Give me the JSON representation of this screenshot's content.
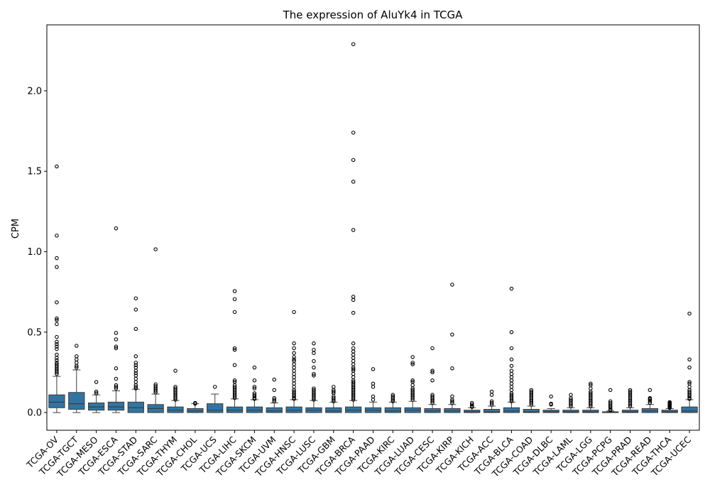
{
  "chart_data": {
    "type": "box",
    "title": "The expression of AluYk4 in TCGA",
    "xlabel": "",
    "ylabel": "CPM",
    "ylim": [
      -0.11,
      2.41
    ],
    "yticks": [
      0.0,
      0.5,
      1.0,
      1.5,
      2.0
    ],
    "ytick_labels": [
      "0.0",
      "0.5",
      "1.0",
      "1.5",
      "2.0"
    ],
    "grid": false,
    "box_color": "#3274a1",
    "categories": [
      "TCGA-OV",
      "TCGA-TGCT",
      "TCGA-MESO",
      "TCGA-ESCA",
      "TCGA-STAD",
      "TCGA-SARC",
      "TCGA-THYM",
      "TCGA-CHOL",
      "TCGA-UCS",
      "TCGA-LIHC",
      "TCGA-SKCM",
      "TCGA-UVM",
      "TCGA-HNSC",
      "TCGA-LUSC",
      "TCGA-GBM",
      "TCGA-BRCA",
      "TCGA-PAAD",
      "TCGA-KIRC",
      "TCGA-LUAD",
      "TCGA-CESC",
      "TCGA-KIRP",
      "TCGA-KICH",
      "TCGA-ACC",
      "TCGA-BLCA",
      "TCGA-COAD",
      "TCGA-DLBC",
      "TCGA-LAML",
      "TCGA-LGG",
      "TCGA-PCPG",
      "TCGA-PRAD",
      "TCGA-READ",
      "TCGA-THCA",
      "TCGA-UCEC"
    ],
    "boxes": [
      {
        "min": 0.0,
        "q1": 0.03,
        "median": 0.065,
        "q3": 0.11,
        "max": 0.225,
        "outliers": [
          1.53,
          1.1,
          0.96,
          0.905,
          0.685,
          0.585,
          0.575,
          0.55,
          0.47,
          0.44,
          0.425,
          0.41,
          0.395,
          0.36,
          0.34,
          0.325,
          0.31,
          0.3,
          0.29,
          0.28,
          0.27,
          0.26,
          0.25,
          0.24
        ]
      },
      {
        "min": 0.0,
        "q1": 0.02,
        "median": 0.055,
        "q3": 0.125,
        "max": 0.265,
        "outliers": [
          0.415,
          0.35,
          0.33,
          0.31,
          0.29,
          0.28
        ]
      },
      {
        "min": 0.0,
        "q1": 0.015,
        "median": 0.035,
        "q3": 0.06,
        "max": 0.11,
        "outliers": [
          0.19,
          0.13,
          0.12
        ]
      },
      {
        "min": 0.0,
        "q1": 0.015,
        "median": 0.035,
        "q3": 0.065,
        "max": 0.135,
        "outliers": [
          1.145,
          0.495,
          0.455,
          0.41,
          0.4,
          0.275,
          0.21,
          0.17,
          0.16,
          0.15
        ]
      },
      {
        "min": 0.0,
        "q1": 0.0,
        "median": 0.03,
        "q3": 0.065,
        "max": 0.145,
        "outliers": [
          0.71,
          0.64,
          0.52,
          0.35,
          0.31,
          0.295,
          0.28,
          0.26,
          0.245,
          0.23,
          0.21,
          0.19,
          0.17,
          0.16,
          0.15
        ]
      },
      {
        "min": 0.0,
        "q1": 0.0,
        "median": 0.025,
        "q3": 0.05,
        "max": 0.115,
        "outliers": [
          1.015,
          0.175,
          0.165,
          0.155,
          0.145,
          0.135,
          0.125
        ]
      },
      {
        "min": 0.0,
        "q1": 0.0,
        "median": 0.015,
        "q3": 0.035,
        "max": 0.075,
        "outliers": [
          0.26,
          0.16,
          0.15,
          0.14,
          0.13,
          0.12,
          0.11,
          0.1,
          0.09,
          0.08
        ]
      },
      {
        "min": 0.0,
        "q1": 0.0,
        "median": 0.01,
        "q3": 0.025,
        "max": 0.055,
        "outliers": [
          0.06,
          0.055
        ]
      },
      {
        "min": 0.0,
        "q1": 0.0,
        "median": 0.015,
        "q3": 0.055,
        "max": 0.115,
        "outliers": [
          0.16
        ]
      },
      {
        "min": 0.0,
        "q1": 0.0,
        "median": 0.015,
        "q3": 0.035,
        "max": 0.085,
        "outliers": [
          0.755,
          0.705,
          0.625,
          0.4,
          0.39,
          0.295,
          0.2,
          0.19,
          0.17,
          0.16,
          0.15,
          0.14,
          0.13,
          0.12,
          0.11,
          0.1,
          0.09
        ]
      },
      {
        "min": 0.0,
        "q1": 0.0,
        "median": 0.015,
        "q3": 0.035,
        "max": 0.08,
        "outliers": [
          0.28,
          0.2,
          0.16,
          0.15,
          0.12,
          0.11,
          0.1,
          0.09,
          0.085
        ]
      },
      {
        "min": 0.0,
        "q1": 0.0,
        "median": 0.01,
        "q3": 0.03,
        "max": 0.06,
        "outliers": [
          0.205,
          0.14,
          0.09,
          0.08,
          0.07
        ]
      },
      {
        "min": 0.0,
        "q1": 0.0,
        "median": 0.015,
        "q3": 0.035,
        "max": 0.08,
        "outliers": [
          0.625,
          0.43,
          0.4,
          0.37,
          0.345,
          0.33,
          0.32,
          0.3,
          0.28,
          0.26,
          0.24,
          0.22,
          0.2,
          0.18,
          0.16,
          0.14,
          0.13,
          0.12,
          0.11,
          0.1,
          0.09,
          0.085
        ]
      },
      {
        "min": 0.0,
        "q1": 0.0,
        "median": 0.015,
        "q3": 0.03,
        "max": 0.075,
        "outliers": [
          0.43,
          0.39,
          0.37,
          0.32,
          0.28,
          0.24,
          0.23,
          0.15,
          0.14,
          0.13,
          0.12,
          0.11,
          0.1,
          0.09,
          0.08
        ]
      },
      {
        "min": 0.0,
        "q1": 0.0,
        "median": 0.01,
        "q3": 0.03,
        "max": 0.065,
        "outliers": [
          0.16,
          0.14,
          0.13,
          0.12,
          0.1,
          0.09,
          0.08,
          0.07
        ]
      },
      {
        "min": 0.0,
        "q1": 0.0,
        "median": 0.015,
        "q3": 0.035,
        "max": 0.075,
        "outliers": [
          2.29,
          1.74,
          1.57,
          1.435,
          1.135,
          0.72,
          0.7,
          0.62,
          0.43,
          0.4,
          0.38,
          0.36,
          0.34,
          0.32,
          0.3,
          0.28,
          0.27,
          0.26,
          0.24,
          0.22,
          0.2,
          0.19,
          0.18,
          0.17,
          0.16,
          0.15,
          0.14,
          0.13,
          0.12,
          0.11,
          0.1,
          0.09,
          0.08
        ]
      },
      {
        "min": 0.0,
        "q1": 0.0,
        "median": 0.015,
        "q3": 0.03,
        "max": 0.065,
        "outliers": [
          0.27,
          0.18,
          0.16,
          0.1,
          0.08
        ]
      },
      {
        "min": 0.0,
        "q1": 0.0,
        "median": 0.01,
        "q3": 0.03,
        "max": 0.065,
        "outliers": [
          0.11,
          0.1,
          0.09,
          0.08,
          0.07
        ]
      },
      {
        "min": 0.0,
        "q1": 0.0,
        "median": 0.015,
        "q3": 0.03,
        "max": 0.07,
        "outliers": [
          0.345,
          0.31,
          0.3,
          0.2,
          0.19,
          0.17,
          0.15,
          0.14,
          0.13,
          0.12,
          0.11,
          0.1,
          0.09,
          0.08
        ]
      },
      {
        "min": 0.0,
        "q1": 0.0,
        "median": 0.01,
        "q3": 0.025,
        "max": 0.05,
        "outliers": [
          0.4,
          0.26,
          0.25,
          0.2,
          0.11,
          0.1,
          0.09,
          0.08,
          0.07,
          0.06
        ]
      },
      {
        "min": 0.0,
        "q1": 0.0,
        "median": 0.01,
        "q3": 0.025,
        "max": 0.05,
        "outliers": [
          0.795,
          0.485,
          0.275,
          0.1,
          0.08,
          0.07,
          0.06
        ]
      },
      {
        "min": 0.0,
        "q1": 0.0,
        "median": 0.005,
        "q3": 0.015,
        "max": 0.03,
        "outliers": [
          0.06,
          0.05,
          0.04,
          0.035
        ]
      },
      {
        "min": 0.0,
        "q1": 0.0,
        "median": 0.005,
        "q3": 0.02,
        "max": 0.04,
        "outliers": [
          0.13,
          0.11,
          0.07,
          0.06,
          0.05
        ]
      },
      {
        "min": 0.0,
        "q1": 0.0,
        "median": 0.01,
        "q3": 0.03,
        "max": 0.065,
        "outliers": [
          0.77,
          0.5,
          0.4,
          0.33,
          0.29,
          0.26,
          0.24,
          0.22,
          0.2,
          0.18,
          0.16,
          0.14,
          0.12,
          0.11,
          0.1,
          0.09,
          0.08,
          0.07
        ]
      },
      {
        "min": 0.0,
        "q1": 0.0,
        "median": 0.005,
        "q3": 0.02,
        "max": 0.04,
        "outliers": [
          0.14,
          0.13,
          0.12,
          0.11,
          0.1,
          0.09,
          0.08,
          0.07,
          0.06,
          0.05
        ]
      },
      {
        "min": 0.0,
        "q1": 0.0,
        "median": 0.005,
        "q3": 0.015,
        "max": 0.025,
        "outliers": [
          0.1,
          0.055,
          0.05
        ]
      },
      {
        "min": 0.0,
        "q1": 0.0,
        "median": 0.005,
        "q3": 0.015,
        "max": 0.03,
        "outliers": [
          0.11,
          0.09,
          0.08,
          0.07,
          0.06,
          0.05,
          0.04
        ]
      },
      {
        "min": 0.0,
        "q1": 0.0,
        "median": 0.005,
        "q3": 0.015,
        "max": 0.03,
        "outliers": [
          0.18,
          0.17,
          0.15,
          0.13,
          0.12,
          0.11,
          0.1,
          0.09,
          0.08,
          0.07,
          0.06,
          0.05,
          0.04
        ]
      },
      {
        "min": 0.0,
        "q1": 0.0,
        "median": 0.0,
        "q3": 0.005,
        "max": 0.01,
        "outliers": [
          0.14,
          0.07,
          0.06,
          0.05,
          0.04,
          0.03,
          0.02,
          0.015
        ]
      },
      {
        "min": 0.0,
        "q1": 0.0,
        "median": 0.005,
        "q3": 0.015,
        "max": 0.03,
        "outliers": [
          0.14,
          0.13,
          0.12,
          0.11,
          0.1,
          0.09,
          0.08,
          0.07,
          0.06,
          0.05,
          0.04
        ]
      },
      {
        "min": 0.0,
        "q1": 0.0,
        "median": 0.01,
        "q3": 0.025,
        "max": 0.05,
        "outliers": [
          0.14,
          0.09,
          0.085,
          0.08,
          0.07,
          0.06
        ]
      },
      {
        "min": 0.0,
        "q1": 0.0,
        "median": 0.005,
        "q3": 0.015,
        "max": 0.025,
        "outliers": [
          0.065,
          0.06,
          0.055,
          0.05,
          0.045,
          0.04,
          0.035,
          0.03
        ]
      },
      {
        "min": 0.0,
        "q1": 0.0,
        "median": 0.01,
        "q3": 0.035,
        "max": 0.08,
        "outliers": [
          0.615,
          0.33,
          0.28,
          0.19,
          0.18,
          0.16,
          0.14,
          0.13,
          0.12,
          0.11,
          0.1,
          0.09,
          0.085
        ]
      }
    ]
  }
}
